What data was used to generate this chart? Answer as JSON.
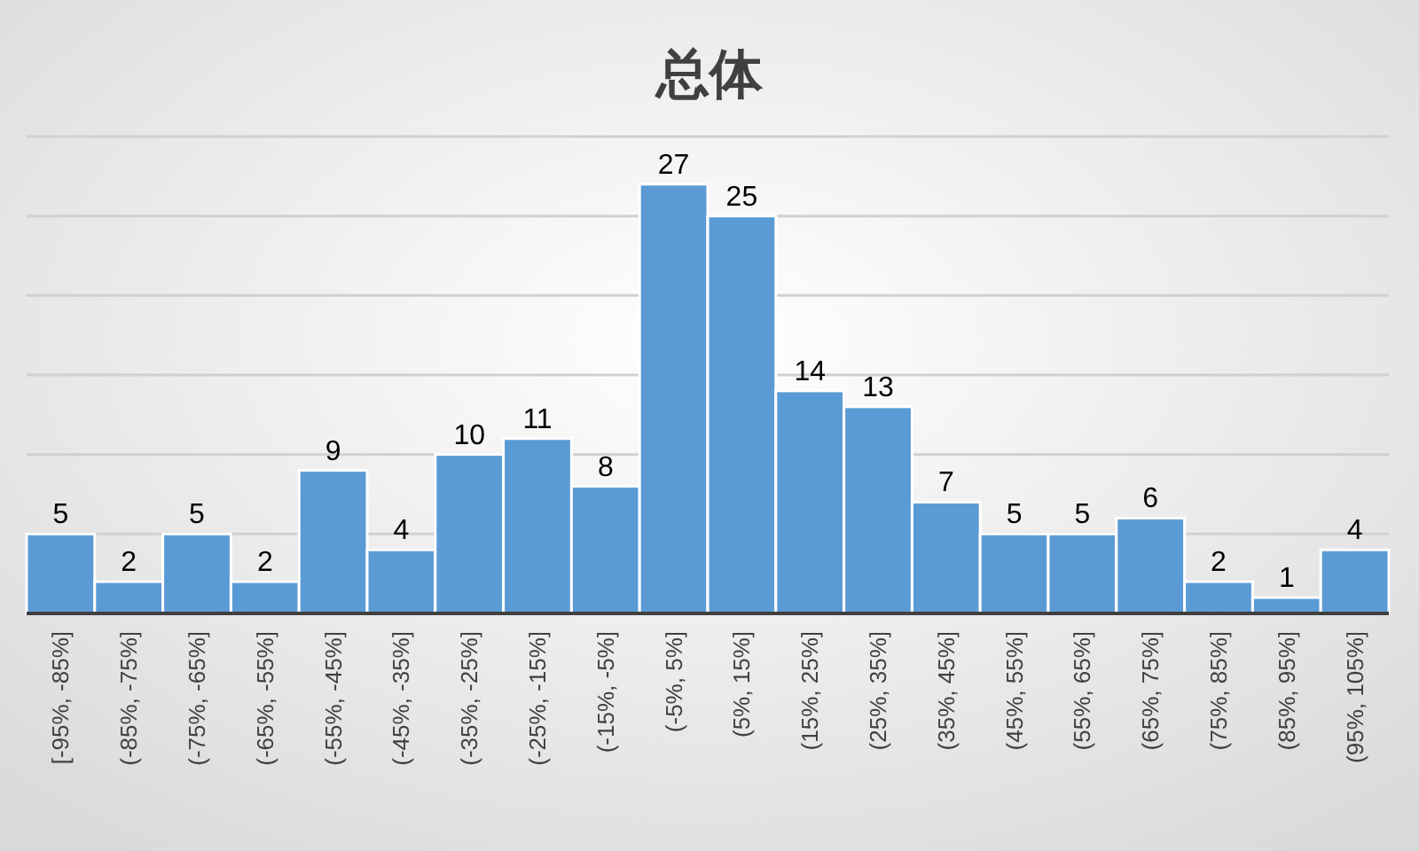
{
  "chart_data": {
    "type": "bar",
    "title": "总体",
    "categories": [
      "[-95%, -85%]",
      "(-85%, -75%]",
      "(-75%, -65%]",
      "(-65%, -55%]",
      "(-55%, -45%]",
      "(-45%, -35%]",
      "(-35%, -25%]",
      "(-25%, -15%]",
      "(-15%, -5%]",
      "(-5%, 5%]",
      "(5%, 15%]",
      "(15%, 25%]",
      "(25%, 35%]",
      "(35%, 45%]",
      "(45%, 55%]",
      "(55%, 65%]",
      "(65%, 75%]",
      "(75%, 85%]",
      "(85%, 95%]",
      "(95%, 105%]"
    ],
    "values": [
      5,
      2,
      5,
      2,
      9,
      4,
      10,
      11,
      8,
      27,
      25,
      14,
      13,
      7,
      5,
      5,
      6,
      2,
      1,
      4
    ],
    "color": "#5b9bd5",
    "ylim": [
      0,
      30
    ],
    "yticks": [
      {
        "value": 0,
        "label": null
      },
      {
        "value": 5,
        "label": null
      },
      {
        "value": 10,
        "label": null
      },
      {
        "value": 15,
        "label": null
      },
      {
        "value": 20,
        "label": null
      },
      {
        "value": 25,
        "label": null
      },
      {
        "value": 30,
        "label": null
      }
    ],
    "grid": "y",
    "tick_labels": "x",
    "data_labels": true
  }
}
